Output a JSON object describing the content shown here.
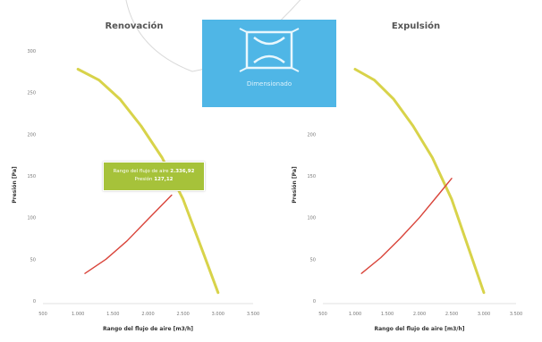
{
  "colors": {
    "fan_curve": "#d8d34a",
    "system_curve": "#d9443a",
    "badge": "#4fb6e6",
    "tooltip": "#a6c23a"
  },
  "badge": {
    "label": "Dimensionado",
    "icon": "heat-exchanger-icon"
  },
  "tooltip": {
    "flow_label": "Rango del flujo de aire",
    "flow_value": "2.336,92",
    "pressure_label": "Presión",
    "pressure_value": "127,12"
  },
  "chart_data": [
    {
      "type": "line",
      "title": "Renovación",
      "xlabel": "Rango del flujo de aire [m3/h]",
      "ylabel": "Presión [Pa]",
      "xlim": [
        500,
        3500
      ],
      "ylim": [
        0,
        300
      ],
      "x_ticks": [
        "500",
        "1.000",
        "1.500",
        "2.000",
        "2.500",
        "3.000",
        "3.500"
      ],
      "y_ticks": [
        "0",
        "50",
        "100",
        "150",
        "200",
        "250",
        "300"
      ],
      "series": [
        {
          "x": [
            1000,
            1300,
            1600,
            1900,
            2200,
            2500,
            2800,
            3000
          ],
          "y": [
            278,
            265,
            242,
            210,
            172,
            122,
            55,
            10
          ]
        },
        {
          "x": [
            1100,
            1400,
            1700,
            2000,
            2337
          ],
          "y": [
            33,
            50,
            72,
            98,
            127
          ]
        }
      ]
    },
    {
      "type": "line",
      "title": "Expulsión",
      "xlabel": "Rango del flujo de aire [m3/h]",
      "ylabel": "Presión [Pa]",
      "xlim": [
        500,
        3500
      ],
      "ylim": [
        0,
        300
      ],
      "x_ticks": [
        "500",
        "1.000",
        "1.500",
        "2.000",
        "2.500",
        "3.000",
        "3.500"
      ],
      "y_ticks": [
        "0",
        "50",
        "100",
        "150",
        "200",
        "250",
        "300"
      ],
      "series": [
        {
          "x": [
            1000,
            1300,
            1600,
            1900,
            2200,
            2500,
            2800,
            3000
          ],
          "y": [
            278,
            265,
            242,
            210,
            172,
            122,
            55,
            10
          ]
        },
        {
          "x": [
            1100,
            1400,
            1700,
            2000,
            2300,
            2500
          ],
          "y": [
            33,
            52,
            75,
            100,
            128,
            147
          ]
        }
      ]
    }
  ]
}
